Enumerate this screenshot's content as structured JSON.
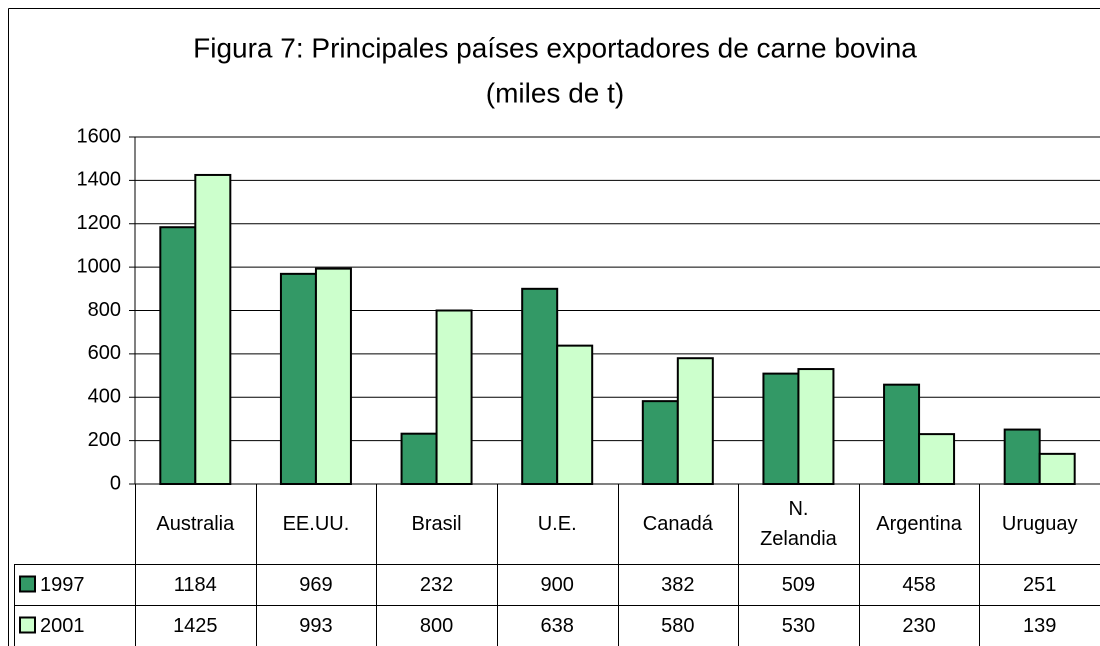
{
  "chart_data": {
    "type": "bar",
    "title": "Figura 7: Principales países exportadores de carne bovina",
    "subtitle": "(miles de t)",
    "categories": [
      "Australia",
      "EE.UU.",
      "Brasil",
      "U.E.",
      "Canadá",
      "N. Zelandia",
      "Argentina",
      "Uruguay"
    ],
    "series": [
      {
        "name": "1997",
        "color": "#339966",
        "values": [
          1184,
          969,
          232,
          900,
          382,
          509,
          458,
          251
        ]
      },
      {
        "name": "2001",
        "color": "#ccffcc",
        "values": [
          1425,
          993,
          800,
          638,
          580,
          530,
          230,
          139
        ]
      }
    ],
    "ylim": [
      0,
      1600
    ],
    "yticks": [
      0,
      200,
      400,
      600,
      800,
      1000,
      1200,
      1400,
      1600
    ],
    "grid": true
  }
}
